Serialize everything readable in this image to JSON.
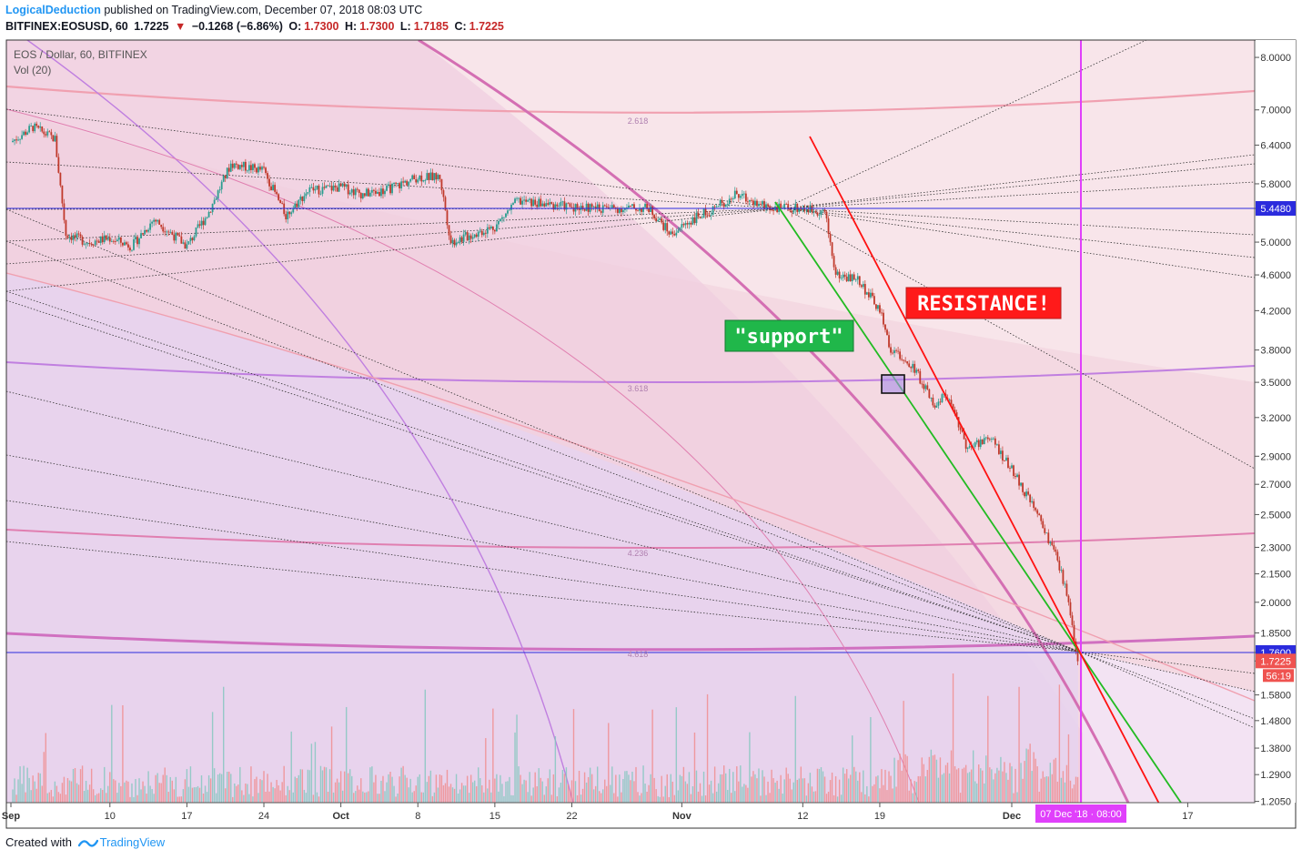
{
  "header": {
    "author": "LogicalDeduction",
    "published": "published on TradingView.com, December 07, 2018 08:03 UTC",
    "symbol": "BITFINEX:EOSUSD, 60",
    "last": "1.7225",
    "change": "−0.1268 (−6.86%)",
    "o_label": "O:",
    "o_val": "1.7300",
    "h_label": "H:",
    "h_val": "1.7300",
    "l_label": "L:",
    "l_val": "1.7185",
    "c_label": "C:",
    "c_val": "1.7225"
  },
  "legend": {
    "series": "EOS / Dollar, 60, BITFINEX",
    "volume": "Vol (20)"
  },
  "annotations": {
    "support": "\"support\"",
    "resistance": "RESISTANCE!"
  },
  "footer": {
    "created": "Created with",
    "brand": "TradingView"
  },
  "colors": {
    "up": "#26a69a",
    "down": "#ef5350",
    "support_line": "#22bb22",
    "resistance_line": "#ff1111",
    "vertical_line": "#e040fb",
    "horizontal_line": "#2b2bdd",
    "price_tag_last": "#ef5350"
  },
  "chart_data": {
    "type": "candlestick",
    "scale": "log",
    "ylim": [
      1.205,
      8.3
    ],
    "price_ticks": [
      "8.0000",
      "7.0000",
      "6.4000",
      "5.8000",
      "5.4480",
      "5.0000",
      "4.6000",
      "4.2000",
      "3.8000",
      "3.5000",
      "3.2000",
      "2.9000",
      "2.7000",
      "2.5000",
      "2.3000",
      "2.1500",
      "2.0000",
      "1.8500",
      "1.7600",
      "1.7225",
      "1.5800",
      "1.4800",
      "1.3800",
      "1.2900",
      "1.2050"
    ],
    "x_ticks": [
      "Sep",
      "10",
      "17",
      "24",
      "Oct",
      "8",
      "15",
      "22",
      "Nov",
      "12",
      "19",
      "Dec",
      "17"
    ],
    "horizontal_levels": [
      {
        "price": 5.448,
        "label": "5.4480"
      },
      {
        "price": 1.76,
        "label": "1.7600"
      }
    ],
    "last_price": {
      "price": 1.7225,
      "label": "1.7225",
      "countdown": "56:19"
    },
    "fib_levels": [
      "2.618",
      "3.618",
      "4.236",
      "4.618"
    ],
    "cursor_date": "07 Dec '18 · 08:00",
    "series": [
      {
        "name": "EOS / Dollar",
        "x": [
          "Sep 1",
          "Sep 3",
          "Sep 5",
          "Sep 6",
          "Sep 8",
          "Sep 10",
          "Sep 12",
          "Sep 14",
          "Sep 17",
          "Sep 19",
          "Sep 21",
          "Sep 24",
          "Sep 26",
          "Sep 28",
          "Oct 1",
          "Oct 3",
          "Oct 5",
          "Oct 8",
          "Oct 10",
          "Oct 11",
          "Oct 13",
          "Oct 15",
          "Oct 17",
          "Oct 20",
          "Oct 24",
          "Oct 27",
          "Oct 29",
          "Oct 31",
          "Nov 2",
          "Nov 4",
          "Nov 6",
          "Nov 8",
          "Nov 10",
          "Nov 12",
          "Nov 14",
          "Nov 15",
          "Nov 17",
          "Nov 19",
          "Nov 20",
          "Nov 22",
          "Nov 24",
          "Nov 25",
          "Nov 27",
          "Nov 29",
          "Dec 1",
          "Dec 3",
          "Dec 5",
          "Dec 6",
          "Dec 7"
        ],
        "close": [
          6.45,
          6.7,
          6.5,
          5.1,
          5.0,
          5.05,
          4.95,
          5.3,
          4.95,
          5.4,
          6.1,
          6.0,
          5.35,
          5.7,
          5.75,
          5.65,
          5.7,
          5.9,
          5.9,
          5.0,
          5.1,
          5.2,
          5.55,
          5.5,
          5.45,
          5.45,
          5.45,
          5.1,
          5.3,
          5.45,
          5.65,
          5.5,
          5.45,
          5.45,
          5.4,
          4.6,
          4.55,
          4.2,
          3.8,
          3.65,
          3.3,
          3.4,
          2.95,
          3.05,
          2.8,
          2.55,
          2.25,
          2.05,
          1.7225
        ]
      }
    ]
  }
}
